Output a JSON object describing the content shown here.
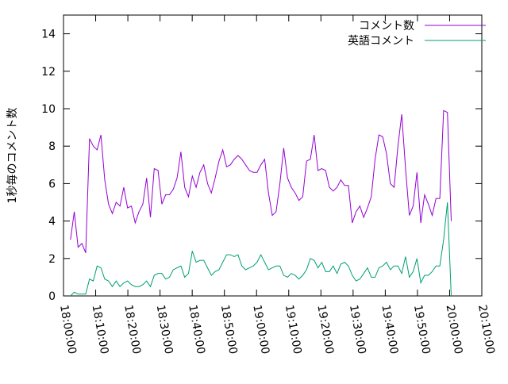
{
  "chart_data": {
    "type": "line",
    "ylabel": "1秒毎のコメント数",
    "x": [
      "18:02:10",
      "18:03:21",
      "18:04:32",
      "18:05:43",
      "18:06:54",
      "18:08:05",
      "18:09:16",
      "18:10:27",
      "18:11:38",
      "18:12:49",
      "18:14:00",
      "18:15:11",
      "18:16:22",
      "18:17:33",
      "18:18:44",
      "18:19:55",
      "18:21:06",
      "18:22:17",
      "18:23:28",
      "18:24:39",
      "18:25:50",
      "18:27:01",
      "18:28:12",
      "18:29:23",
      "18:30:34",
      "18:31:45",
      "18:32:56",
      "18:34:07",
      "18:35:18",
      "18:36:29",
      "18:37:40",
      "18:38:51",
      "18:40:02",
      "18:41:13",
      "18:42:24",
      "18:43:35",
      "18:44:46",
      "18:45:57",
      "18:47:08",
      "18:48:19",
      "18:49:30",
      "18:50:41",
      "18:51:52",
      "18:53:03",
      "18:54:14",
      "18:55:25",
      "18:56:36",
      "18:57:47",
      "18:58:58",
      "19:00:09",
      "19:01:20",
      "19:02:31",
      "19:03:42",
      "19:04:53",
      "19:06:04",
      "19:07:15",
      "19:08:26",
      "19:09:37",
      "19:10:48",
      "19:11:59",
      "19:13:10",
      "19:14:21",
      "19:15:32",
      "19:16:43",
      "19:17:54",
      "19:19:05",
      "19:20:16",
      "19:21:27",
      "19:22:38",
      "19:23:49",
      "19:25:00",
      "19:26:11",
      "19:27:22",
      "19:28:33",
      "19:29:44",
      "19:30:55",
      "19:32:06",
      "19:33:17",
      "19:34:28",
      "19:35:39",
      "19:36:50",
      "19:38:01",
      "19:39:12",
      "19:40:23",
      "19:41:34",
      "19:42:45",
      "19:43:56",
      "19:45:07",
      "19:46:18",
      "19:47:29",
      "19:48:40",
      "19:49:51",
      "19:51:02",
      "19:52:13",
      "19:53:24",
      "19:54:35",
      "19:55:46",
      "19:56:57",
      "19:58:08",
      "19:59:19",
      "20:00:30"
    ],
    "series": [
      {
        "name": "コメント数",
        "color": "#9400d3",
        "values": [
          3.0,
          4.5,
          2.6,
          2.8,
          2.3,
          8.4,
          8.0,
          7.8,
          8.6,
          6.2,
          4.9,
          4.4,
          5.0,
          4.8,
          5.8,
          4.7,
          4.8,
          3.9,
          4.5,
          4.9,
          6.3,
          4.2,
          6.8,
          6.7,
          4.9,
          5.4,
          5.4,
          5.7,
          6.3,
          7.7,
          5.8,
          5.3,
          6.4,
          5.8,
          6.6,
          7.0,
          6.0,
          5.5,
          6.3,
          7.2,
          7.8,
          6.9,
          7.0,
          7.3,
          7.5,
          7.3,
          7.0,
          6.7,
          6.6,
          6.6,
          7.0,
          7.3,
          5.5,
          4.3,
          4.5,
          6.0,
          7.9,
          6.3,
          5.8,
          5.5,
          5.1,
          5.3,
          7.2,
          7.3,
          8.6,
          6.7,
          6.8,
          6.7,
          5.8,
          5.6,
          5.8,
          6.2,
          5.9,
          5.9,
          3.9,
          4.5,
          4.8,
          4.2,
          4.7,
          5.3,
          7.3,
          8.6,
          8.5,
          7.6,
          6.0,
          5.8,
          8.0,
          9.7,
          6.8,
          4.3,
          4.8,
          6.6,
          3.9,
          5.4,
          4.9,
          4.3,
          5.2,
          5.2,
          9.9,
          9.8,
          4.0
        ]
      },
      {
        "name": "英語コメント",
        "color": "#009e73",
        "values": [
          0.0,
          0.2,
          0.1,
          0.1,
          0.1,
          0.9,
          0.8,
          1.6,
          1.5,
          0.9,
          0.8,
          0.5,
          0.8,
          0.5,
          0.7,
          0.8,
          0.6,
          0.5,
          0.5,
          0.6,
          0.8,
          0.5,
          1.1,
          1.2,
          1.2,
          0.9,
          1.0,
          1.4,
          1.5,
          1.6,
          1.0,
          1.2,
          2.4,
          1.8,
          1.9,
          1.9,
          1.5,
          1.1,
          1.3,
          1.4,
          1.8,
          2.2,
          2.2,
          2.1,
          2.2,
          1.6,
          1.4,
          1.5,
          1.6,
          1.8,
          2.2,
          1.8,
          1.4,
          1.5,
          1.6,
          1.6,
          1.1,
          1.0,
          1.2,
          1.1,
          0.9,
          1.1,
          1.4,
          2.0,
          1.9,
          1.5,
          1.8,
          1.3,
          1.3,
          1.6,
          1.2,
          1.7,
          1.8,
          1.6,
          1.1,
          0.8,
          0.9,
          1.2,
          1.5,
          1.0,
          1.0,
          1.5,
          1.6,
          1.8,
          1.4,
          1.6,
          1.6,
          1.2,
          2.1,
          1.0,
          1.3,
          2.0,
          0.7,
          1.1,
          1.1,
          1.3,
          1.6,
          1.6,
          3.0,
          5.0,
          0.0
        ]
      }
    ],
    "xlim": [
      "18:00:00",
      "20:10:00"
    ],
    "xticks": [
      "18:00:00",
      "18:10:00",
      "18:20:00",
      "18:30:00",
      "18:40:00",
      "18:50:00",
      "19:00:00",
      "19:10:00",
      "19:20:00",
      "19:30:00",
      "19:40:00",
      "19:50:00",
      "20:00:00",
      "20:10:00"
    ],
    "ylim": [
      0,
      15
    ],
    "yticks": [
      0,
      2,
      4,
      6,
      8,
      10,
      12,
      14
    ],
    "legend": "upper right"
  }
}
